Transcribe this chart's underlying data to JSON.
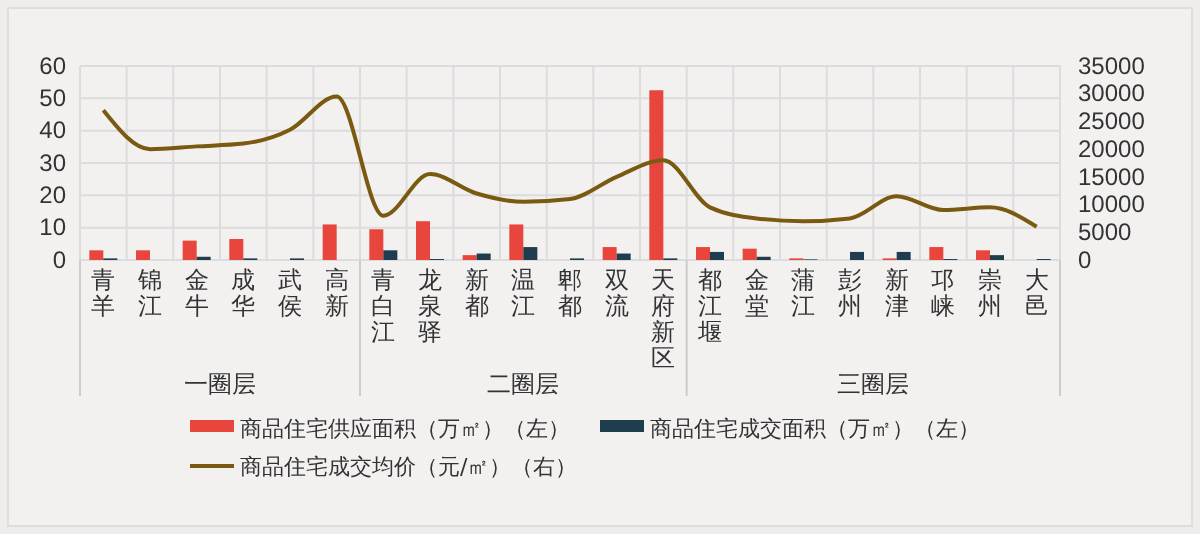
{
  "chart_data": {
    "type": "bar",
    "categories": [
      "青羊",
      "锦江",
      "金牛",
      "成华",
      "武侯",
      "高新",
      "青白江",
      "龙泉驿",
      "新都",
      "温江",
      "郫都",
      "双流",
      "天府新区",
      "都江堰",
      "金堂",
      "蒲江",
      "彭州",
      "新津",
      "邛崃",
      "崇州",
      "大邑"
    ],
    "series": [
      {
        "name": "商品住宅供应面积（万㎡）（左）",
        "color": "#e8453c",
        "values": [
          3,
          3,
          6,
          6.5,
          0,
          11,
          9.5,
          12,
          1.5,
          11,
          0,
          4,
          52.5,
          4,
          3.5,
          0.5,
          0,
          0.5,
          4,
          3,
          0
        ]
      },
      {
        "name": "商品住宅成交面积（万㎡）（左）",
        "color": "#1f3d4f",
        "values": [
          0.5,
          0,
          1,
          0.5,
          0.5,
          0,
          3,
          0.3,
          2,
          4,
          0.5,
          2,
          0.5,
          2.5,
          1,
          0.2,
          2.5,
          2.5,
          0.3,
          1.5,
          0.3
        ]
      },
      {
        "name": "商品住宅成交均价（元/㎡）（右）",
        "type": "line",
        "axis": "y2",
        "color": "#7a5a10",
        "values": [
          27000,
          20000,
          20500,
          21000,
          23500,
          29500,
          8000,
          15500,
          12000,
          10500,
          11000,
          15000,
          18000,
          9500,
          7500,
          7000,
          7500,
          11500,
          9000,
          9500,
          6000
        ]
      }
    ],
    "ylim": [
      0,
      60
    ],
    "yticks": [
      0,
      10,
      20,
      30,
      40,
      50,
      60
    ],
    "y2lim": [
      0,
      35000
    ],
    "y2ticks": [
      0,
      5000,
      10000,
      15000,
      20000,
      25000,
      30000,
      35000
    ],
    "annotations": [
      "一圈层",
      "二圈层",
      "三圈层"
    ],
    "grid": true,
    "legend": "bottom"
  }
}
